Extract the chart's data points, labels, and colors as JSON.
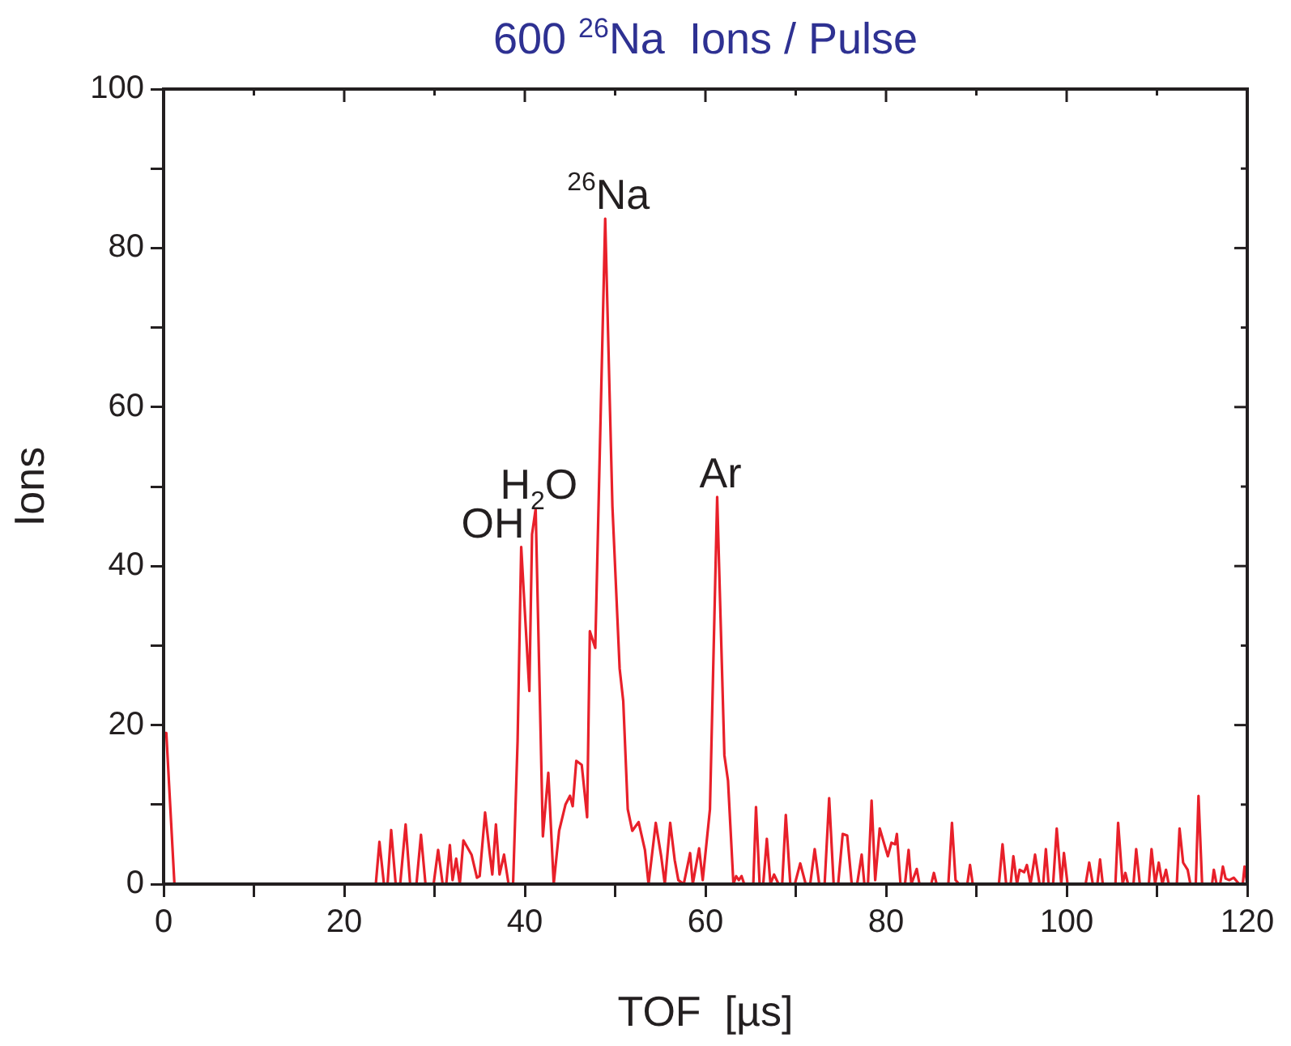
{
  "chart_data": {
    "type": "line",
    "title": "600 $^{26}$Na  Ions / Pulse",
    "xlabel": "TOF  [µs]",
    "ylabel": "Ions",
    "x": [
      0,
      0.3,
      1.2,
      23.5,
      23.9,
      24.4,
      24.8,
      25.2,
      25.7,
      26.2,
      26.8,
      27.3,
      28.0,
      28.5,
      29.0,
      29.9,
      30.4,
      30.9,
      31.3,
      31.7,
      32.0,
      32.4,
      32.8,
      33.2,
      34.1,
      34.7,
      35.0,
      35.6,
      36.1,
      36.4,
      36.8,
      37.2,
      37.7,
      38.2,
      38.7,
      39.2,
      39.6,
      40.5,
      40.8,
      41.2,
      42.0,
      42.6,
      43.2,
      43.8,
      44.5,
      45.0,
      45.3,
      45.7,
      46.3,
      46.9,
      47.2,
      47.8,
      48.9,
      49.7,
      50.5,
      50.9,
      51.4,
      51.9,
      52.6,
      53.3,
      53.7,
      54.5,
      55.1,
      55.5,
      56.1,
      56.6,
      57.0,
      57.6,
      58.3,
      58.6,
      59.3,
      59.7,
      60.5,
      61.3,
      62.1,
      62.5,
      63.1,
      63.4,
      63.7,
      64.0,
      64.3,
      65.3,
      65.6,
      66.0,
      66.4,
      66.8,
      67.2,
      67.6,
      68.1,
      68.5,
      68.9,
      69.4,
      69.9,
      70.5,
      71.1,
      71.6,
      72.1,
      72.6,
      73.2,
      73.7,
      74.2,
      74.7,
      75.2,
      75.7,
      76.2,
      76.8,
      77.3,
      77.6,
      78.0,
      78.4,
      78.8,
      79.3,
      80.2,
      80.6,
      81.0,
      81.2,
      81.6,
      82.1,
      82.5,
      82.8,
      83.4,
      83.7,
      85.0,
      85.3,
      85.6,
      86.9,
      87.3,
      87.7,
      88.1,
      89.0,
      89.3,
      89.6,
      92.5,
      92.9,
      93.3,
      93.8,
      94.1,
      94.5,
      94.8,
      95.3,
      95.6,
      96.0,
      96.5,
      97.0,
      97.4,
      97.7,
      98.0,
      98.5,
      98.9,
      99.4,
      99.7,
      100.1,
      102.1,
      102.5,
      102.9,
      103.4,
      103.7,
      104.0,
      105.4,
      105.7,
      106.2,
      106.5,
      106.8,
      107.4,
      107.7,
      108.1,
      109.1,
      109.4,
      109.8,
      110.2,
      110.6,
      111.0,
      111.3,
      112.2,
      112.5,
      112.9,
      113.4,
      113.7,
      114.3,
      114.6,
      115.0,
      116.1,
      116.3,
      116.6,
      117.0,
      117.3,
      117.6,
      118.0,
      118.5,
      119.1,
      119.5,
      119.7,
      120
    ],
    "series": [
      {
        "color": "#e8202a",
        "values": [
          19,
          19,
          0,
          0,
          5.3,
          0,
          0,
          6.8,
          0,
          0,
          7.5,
          0,
          0,
          6.2,
          0,
          0,
          4.3,
          0,
          0,
          4.9,
          0.5,
          3.2,
          0,
          5.5,
          3.7,
          0.8,
          1.0,
          9.0,
          4,
          1.2,
          7.5,
          1.2,
          3.7,
          0,
          0,
          18,
          42.4,
          24.3,
          44,
          47.2,
          6.0,
          14.0,
          0,
          6.7,
          10,
          11.1,
          9.8,
          15.5,
          15.0,
          8.4,
          31.8,
          29.7,
          83.7,
          47.5,
          27.1,
          23.0,
          9.4,
          6.7,
          7.8,
          4.3,
          0,
          7.7,
          3.5,
          0,
          7.7,
          3.0,
          0.5,
          0,
          3.9,
          0,
          4.5,
          0.5,
          9.4,
          48.7,
          16.2,
          13,
          0,
          1,
          0.5,
          1,
          0,
          0,
          9.7,
          0,
          0,
          5.7,
          0,
          1.2,
          0,
          0,
          8.7,
          0,
          0,
          2.6,
          0,
          0,
          4.4,
          0,
          0,
          10.8,
          0,
          0,
          6.3,
          6.1,
          0,
          0,
          3.7,
          0,
          0,
          10.5,
          0.5,
          7.0,
          3.5,
          5.2,
          5.0,
          6.3,
          0,
          0,
          4.3,
          0,
          1.9,
          0,
          0,
          1.4,
          0,
          0,
          7.7,
          0.5,
          0,
          0,
          2.4,
          0,
          0,
          5.0,
          0,
          0,
          3.5,
          0,
          1.8,
          1.5,
          2.4,
          0,
          3.7,
          0,
          0,
          4.4,
          0,
          0,
          7.0,
          0,
          3.9,
          0,
          0,
          2.7,
          0,
          0,
          3.1,
          0,
          0,
          7.7,
          0,
          1.4,
          0,
          0,
          4.4,
          0,
          0,
          4.4,
          0,
          2.7,
          0,
          1.8,
          0,
          0,
          7.0,
          2.7,
          1.8,
          0,
          0,
          11.1,
          0,
          0,
          1.8,
          0,
          0,
          2.2,
          0.7,
          0.5,
          0.8,
          0,
          0,
          2.2,
          0
        ]
      }
    ],
    "xlim": [
      0,
      120
    ],
    "xticks": [
      0,
      {
        "value": 10,
        "label": null
      },
      20,
      {
        "value": 30,
        "label": null
      },
      40,
      {
        "value": 50,
        "label": null
      },
      60,
      {
        "value": 70,
        "label": null
      },
      80,
      {
        "value": 90,
        "label": null
      },
      100,
      {
        "value": 110,
        "label": null
      },
      120
    ],
    "ylim": [
      0,
      100
    ],
    "yticks": [
      0,
      {
        "value": 10,
        "label": null
      },
      20,
      {
        "value": 30,
        "label": null
      },
      40,
      {
        "value": 50,
        "label": null
      },
      60,
      {
        "value": 70,
        "label": null
      },
      80,
      {
        "value": 90,
        "label": null
      },
      100
    ],
    "annotations": [
      {
        "text": "OH",
        "x": 39.6,
        "y": 42.4
      },
      {
        "text": "H$_{2}$O",
        "x": 41.2,
        "y": 47.2
      },
      {
        "text": "$^{26}$Na",
        "x": 48.9,
        "y": 83.7
      },
      {
        "text": "Ar",
        "x": 61.3,
        "y": 48.7
      }
    ],
    "grid": false,
    "legend": false,
    "marker": "none",
    "line_style": "solid"
  }
}
